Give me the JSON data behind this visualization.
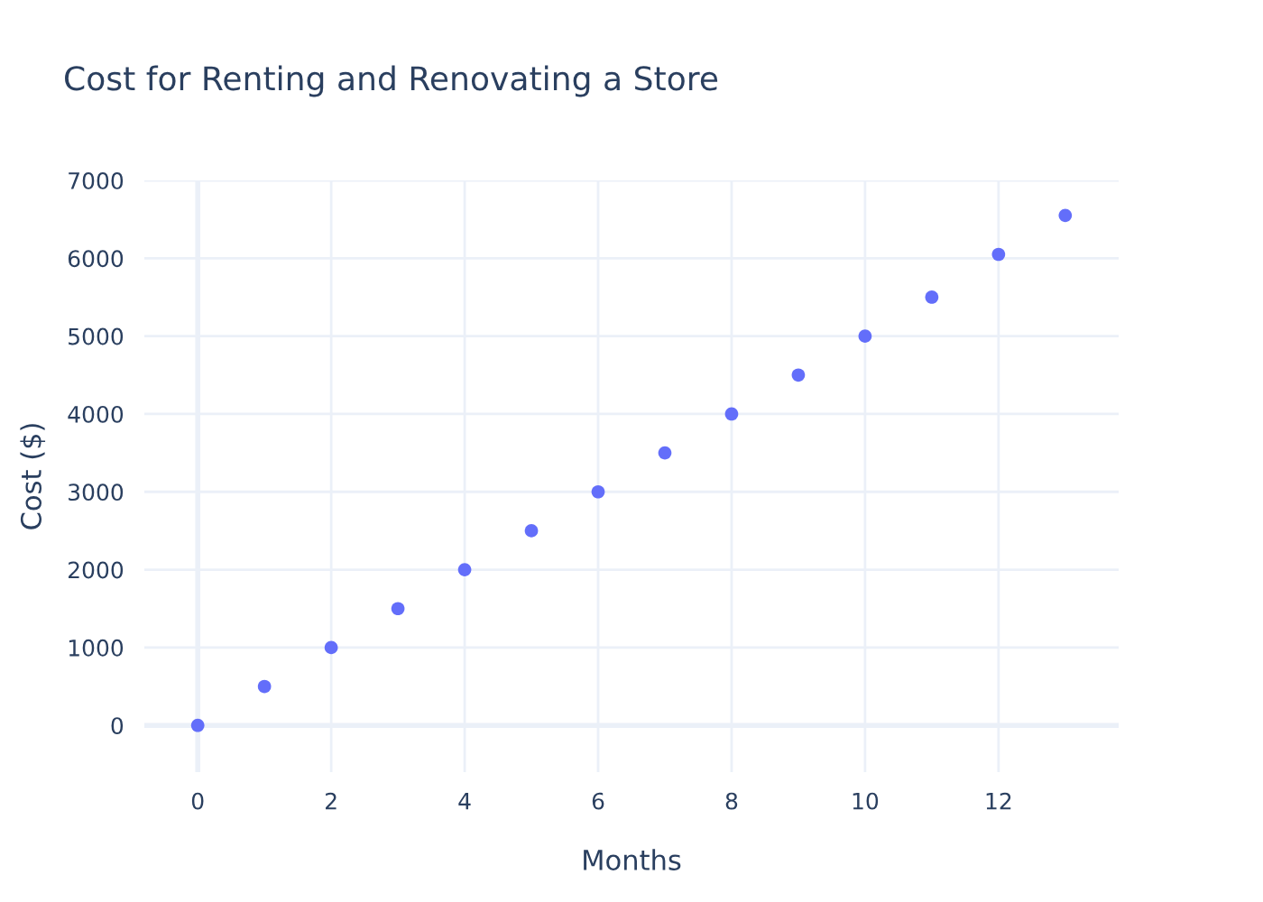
{
  "chart_data": {
    "type": "scatter",
    "title": "Cost for Renting and Renovating a Store",
    "xlabel": "Months",
    "ylabel": "Cost ($)",
    "x": [
      0,
      1,
      2,
      3,
      4,
      5,
      6,
      7,
      8,
      9,
      10,
      11,
      12,
      13
    ],
    "series": [
      {
        "color": "#636efa",
        "values": [
          0,
          500,
          1000,
          1500,
          2000,
          2500,
          3000,
          3500,
          4000,
          4500,
          5000,
          5500,
          6050,
          6550
        ]
      }
    ],
    "xlim": [
      -0.8,
      13.8
    ],
    "xticks": [
      0,
      2,
      4,
      6,
      8,
      10,
      12
    ],
    "ylim": [
      -600,
      7000
    ],
    "yticks": [
      0,
      1000,
      2000,
      3000,
      4000,
      5000,
      6000,
      7000
    ],
    "grid": true,
    "marker": "circle",
    "legend": false
  }
}
